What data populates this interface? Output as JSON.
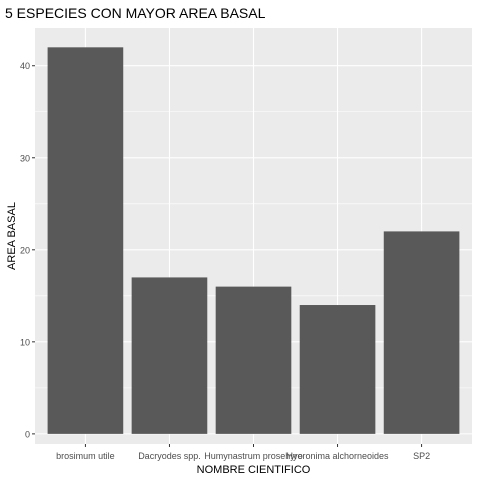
{
  "chart_data": {
    "type": "bar",
    "title": "5 ESPECIES CON MAYOR AREA BASAL",
    "xlabel": "NOMBRE CIENTIFICO",
    "ylabel": "AREA BASAL",
    "categories": [
      "brosimum utile",
      "Dacryodes spp.",
      "Humynastrum prosehyro",
      "Hyeronima alchorneoides",
      "SP2"
    ],
    "values": [
      42,
      17,
      16,
      14,
      22
    ],
    "ylim": [
      -1.1,
      44.1
    ],
    "yticks": [
      0,
      10,
      20,
      30,
      40
    ],
    "grid": true,
    "colors": {
      "bar": "#595959",
      "panel": "#ebebeb",
      "grid": "#ffffff",
      "text": "#000000",
      "tick_text": "#4d4d4d"
    }
  }
}
